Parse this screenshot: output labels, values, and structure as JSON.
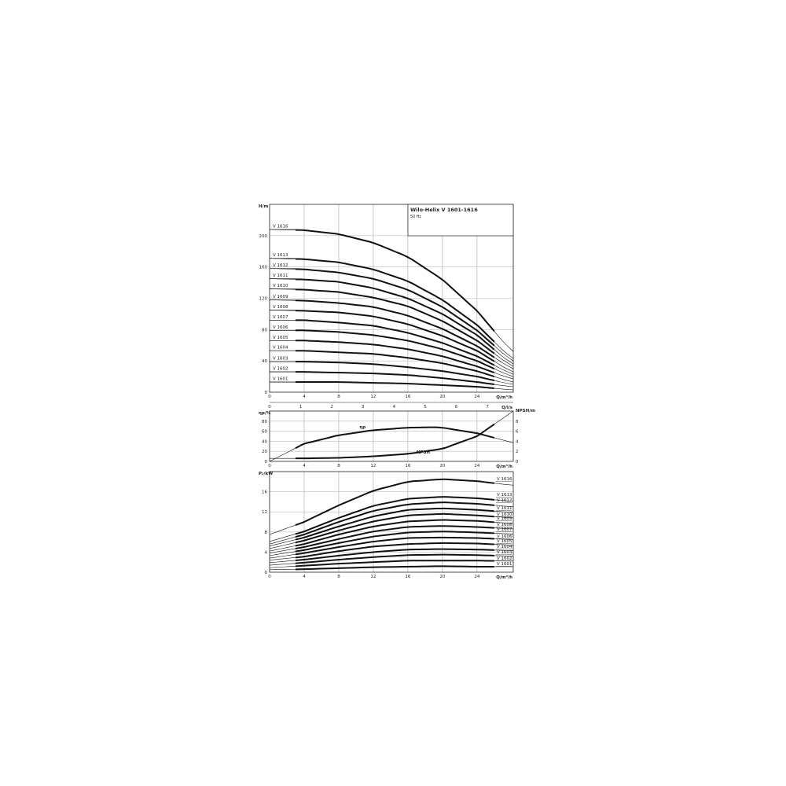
{
  "chart_data": [
    {
      "type": "line",
      "title": "Wilo-Helix V 1601-1616",
      "subtitle": "50 Hz",
      "ylabel": "H/m",
      "xlabel": "Q/m³/h",
      "x2label": "Q/l/s",
      "xlim": [
        0,
        28.2
      ],
      "ylim": [
        0,
        240
      ],
      "x2lim": [
        0,
        7.83
      ],
      "xticks": [
        0,
        4,
        8,
        12,
        16,
        20,
        24
      ],
      "x2ticks": [
        0,
        1,
        2,
        3,
        4,
        5,
        6,
        7
      ],
      "yticks": [
        0,
        40,
        80,
        120,
        160,
        200
      ],
      "grid": true,
      "x": [
        0,
        4,
        8,
        12,
        16,
        20,
        24,
        28
      ],
      "series": [
        {
          "name": "V 1616",
          "values": [
            208,
            207,
            202,
            191,
            173,
            144,
            104,
            52
          ]
        },
        {
          "name": "V 1613",
          "values": [
            171,
            170,
            166,
            157,
            142,
            118,
            86,
            43
          ]
        },
        {
          "name": "V 1612",
          "values": [
            158,
            157,
            153,
            145,
            131,
            109,
            79,
            40
          ]
        },
        {
          "name": "V 1611",
          "values": [
            145,
            144,
            141,
            133,
            120,
            100,
            73,
            36
          ]
        },
        {
          "name": "V 1610",
          "values": [
            132,
            131,
            128,
            121,
            110,
            91,
            66,
            33
          ]
        },
        {
          "name": "V 1609",
          "values": [
            118,
            117,
            114,
            109,
            98,
            81,
            59,
            30
          ]
        },
        {
          "name": "V 1608",
          "values": [
            105,
            104,
            102,
            97,
            87,
            72,
            53,
            26
          ]
        },
        {
          "name": "V 1607",
          "values": [
            92,
            92,
            89,
            85,
            76,
            63,
            46,
            23
          ]
        },
        {
          "name": "V 1606",
          "values": [
            79,
            79,
            77,
            73,
            66,
            55,
            40,
            20
          ]
        },
        {
          "name": "V 1605",
          "values": [
            66,
            66,
            64,
            61,
            55,
            46,
            33,
            17
          ]
        },
        {
          "name": "V 1604",
          "values": [
            53,
            53,
            51,
            49,
            44,
            37,
            27,
            13
          ]
        },
        {
          "name": "V 1603",
          "values": [
            39,
            39,
            38,
            36,
            32,
            27,
            20,
            10
          ]
        },
        {
          "name": "V 1602",
          "values": [
            26,
            26,
            25,
            24,
            22,
            18,
            13,
            7
          ]
        },
        {
          "name": "V 1601",
          "values": [
            13,
            13,
            13,
            12,
            11,
            9,
            7,
            3
          ]
        }
      ]
    },
    {
      "type": "line",
      "ylabel": "ηp/%",
      "y2label": "NPSH/m",
      "xlabel": "Q/m³/h",
      "xlim": [
        0,
        28.2
      ],
      "ylim": [
        0,
        100
      ],
      "y2lim": [
        0,
        10
      ],
      "xticks": [
        0,
        4,
        8,
        12,
        16,
        20,
        24
      ],
      "yticks": [
        0,
        20,
        40,
        60,
        80
      ],
      "y2ticks": [
        0,
        2,
        4,
        6,
        8
      ],
      "grid": true,
      "series": [
        {
          "name": "ηp",
          "axis": "left",
          "x": [
            0,
            4,
            8,
            12,
            16,
            19,
            20,
            24,
            28.2
          ],
          "values": [
            0,
            35,
            52,
            62,
            67,
            68,
            67,
            56,
            37
          ]
        },
        {
          "name": "NPSH",
          "axis": "right",
          "x": [
            0,
            4,
            8,
            12,
            16,
            20,
            24,
            28.2
          ],
          "values": [
            0.6,
            0.6,
            0.7,
            1.0,
            1.5,
            2.5,
            5.0,
            10.0
          ]
        }
      ]
    },
    {
      "type": "line",
      "ylabel": "P₂/kW",
      "xlabel": "Q/m³/h",
      "xlim": [
        0,
        28.2
      ],
      "ylim": [
        0,
        20
      ],
      "xticks": [
        0,
        4,
        8,
        12,
        16,
        20,
        24
      ],
      "yticks": [
        0,
        4,
        8,
        12,
        16
      ],
      "grid": true,
      "x": [
        0,
        4,
        8,
        12,
        16,
        20,
        24,
        28
      ],
      "series": [
        {
          "name": "V 1616",
          "values": [
            7.5,
            10,
            13.3,
            16.2,
            18.0,
            18.5,
            18.1,
            17.3
          ]
        },
        {
          "name": "V 1613",
          "values": [
            6.1,
            8.1,
            10.8,
            13.2,
            14.6,
            15.0,
            14.7,
            14.1
          ]
        },
        {
          "name": "V 1612",
          "values": [
            5.6,
            7.5,
            10.0,
            12.2,
            13.5,
            13.9,
            13.6,
            13.0
          ]
        },
        {
          "name": "V 1611",
          "values": [
            5.2,
            6.9,
            9.1,
            11.1,
            12.4,
            12.7,
            12.4,
            11.9
          ]
        },
        {
          "name": "V 1610",
          "values": [
            4.7,
            6.3,
            8.3,
            10.1,
            11.3,
            11.6,
            11.3,
            10.8
          ]
        },
        {
          "name": "V 1609",
          "values": [
            4.2,
            5.6,
            7.5,
            9.1,
            10.1,
            10.4,
            10.2,
            9.7
          ]
        },
        {
          "name": "V 1608",
          "values": [
            3.8,
            5.0,
            6.6,
            8.1,
            9.0,
            9.2,
            9.0,
            8.6
          ]
        },
        {
          "name": "V 1607",
          "values": [
            3.3,
            4.4,
            5.8,
            7.1,
            7.9,
            8.1,
            7.9,
            7.6
          ]
        },
        {
          "name": "V 1606",
          "values": [
            2.8,
            3.8,
            5.0,
            6.1,
            6.8,
            6.9,
            6.8,
            6.5
          ]
        },
        {
          "name": "V 1605",
          "values": [
            2.4,
            3.1,
            4.2,
            5.1,
            5.6,
            5.8,
            5.7,
            5.4
          ]
        },
        {
          "name": "V 1604",
          "values": [
            1.9,
            2.5,
            3.3,
            4.0,
            4.5,
            4.6,
            4.5,
            4.3
          ]
        },
        {
          "name": "V 1603",
          "values": [
            1.4,
            1.9,
            2.5,
            3.0,
            3.4,
            3.5,
            3.4,
            3.2
          ]
        },
        {
          "name": "V 1602",
          "values": [
            0.9,
            1.3,
            1.7,
            2.0,
            2.3,
            2.3,
            2.3,
            2.2
          ]
        },
        {
          "name": "V 1601",
          "values": [
            0.5,
            0.6,
            0.8,
            1.0,
            1.1,
            1.2,
            1.1,
            1.1
          ]
        }
      ]
    }
  ]
}
